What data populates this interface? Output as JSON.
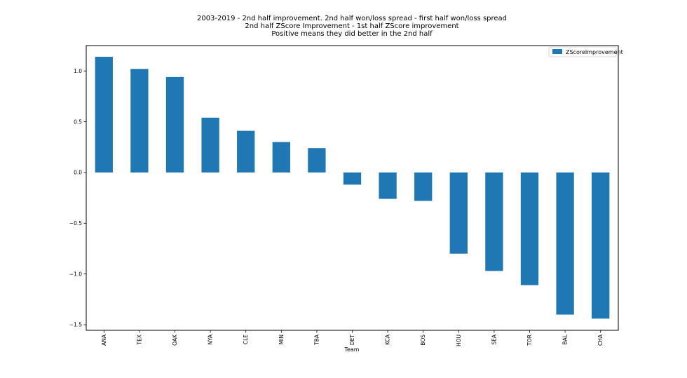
{
  "chart_data": {
    "type": "bar",
    "title_lines": [
      "2003-2019 - 2nd half improvement. 2nd half won/loss spread - first half won/loss spread",
      "2nd half ZScore Improvement - 1st half ZScore improvement",
      "Positive means they did better in the 2nd half"
    ],
    "xlabel": "Team",
    "ylabel": "",
    "categories": [
      "ANA",
      "TEX",
      "OAK",
      "NYA",
      "CLE",
      "MIN",
      "TBA",
      "DET",
      "KCA",
      "BOS",
      "HOU",
      "SEA",
      "TOR",
      "BAL",
      "CHA"
    ],
    "series": [
      {
        "name": "ZScoreImprovement",
        "color": "#1f77b4",
        "values": [
          1.14,
          1.02,
          0.94,
          0.54,
          0.41,
          0.3,
          0.24,
          -0.12,
          -0.26,
          -0.28,
          -0.8,
          -0.97,
          -1.11,
          -1.4,
          -1.44
        ]
      }
    ],
    "yticks": [
      1.0,
      0.5,
      0.0,
      -0.5,
      -1.0,
      -1.5
    ],
    "ytick_labels": [
      "1.0",
      "0.5",
      "0.0",
      "−0.5",
      "−1.0",
      "−1.5"
    ],
    "ylim": [
      -1.555,
      1.25
    ],
    "legend": "top-right",
    "grid": false
  }
}
